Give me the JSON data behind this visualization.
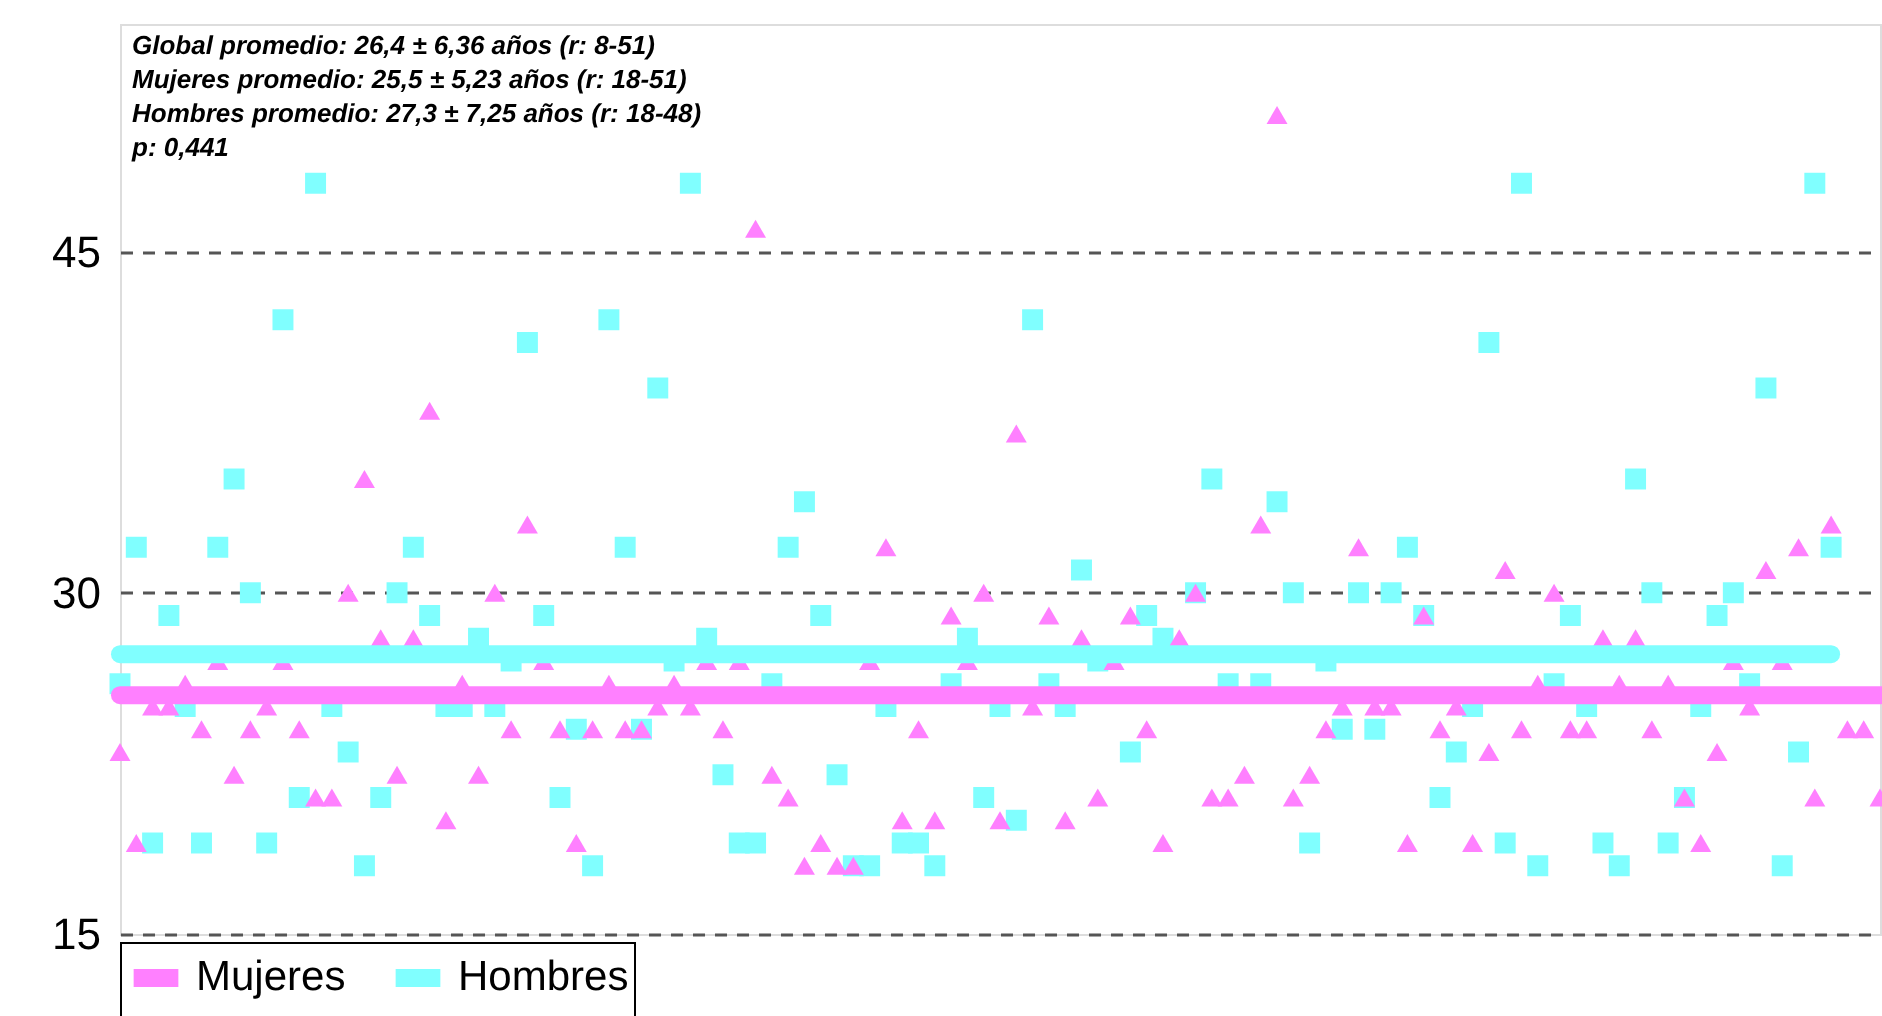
{
  "chart_data": {
    "type": "scatter",
    "annotations": [
      "Global promedio: 26,4 ± 6,36 años (r: 8-51)",
      "Mujeres promedio: 25,5 ± 5,23 años (r: 18-51)",
      "Hombres promedio: 27,3 ± 7,25 años (r: 18-48)",
      "p: 0,441"
    ],
    "categories": [
      null,
      null,
      null,
      null,
      null,
      null,
      null,
      null,
      null,
      null,
      null,
      null,
      null,
      null,
      null,
      null,
      null,
      null,
      null,
      null,
      null,
      null,
      null,
      null,
      null,
      null,
      null,
      null,
      null,
      null,
      null,
      null,
      null,
      null,
      null,
      null,
      null,
      null,
      null,
      null,
      null,
      null,
      null,
      null,
      null,
      null,
      null,
      null,
      null,
      null,
      null,
      null,
      null,
      null,
      null,
      null,
      null,
      null,
      null,
      null,
      null,
      null,
      null,
      null,
      null,
      null,
      null,
      null,
      null,
      null,
      null,
      null,
      null,
      null,
      null,
      null,
      null,
      null,
      null,
      null,
      null,
      null,
      null,
      null,
      null,
      null,
      null,
      null,
      null,
      null,
      null,
      null,
      null,
      null,
      null,
      null,
      null,
      null,
      null,
      null,
      null,
      null,
      null,
      null,
      null,
      null,
      null,
      null,
      null
    ],
    "ylim": [
      15,
      55
    ],
    "yticks": [
      15,
      30,
      45
    ],
    "tick_labels": "y",
    "grid": "y",
    "legend": "bottom",
    "series": [
      {
        "marker": "square",
        "color": "#80ffff",
        "values": [
          26,
          32,
          19,
          29,
          25,
          19,
          32,
          35,
          30,
          19,
          42,
          21,
          48,
          25,
          23,
          18,
          21,
          30,
          32,
          29,
          25,
          25,
          28,
          25,
          27,
          41,
          29,
          21,
          24,
          18,
          42,
          32,
          24,
          39,
          27,
          48,
          28,
          22,
          19,
          19,
          26,
          32,
          34,
          29,
          22,
          18,
          18,
          25,
          19,
          19,
          18,
          26,
          28,
          21,
          25,
          20,
          42,
          26,
          25,
          31,
          27,
          null,
          23,
          29,
          28,
          null,
          30,
          35,
          26,
          null,
          26,
          34,
          30,
          19,
          27,
          24,
          30,
          24,
          30,
          32,
          29,
          21,
          23,
          25,
          41,
          19,
          48,
          18,
          26,
          29,
          25,
          19,
          18,
          35,
          30,
          19,
          21,
          25,
          29,
          30,
          26,
          39,
          18,
          23,
          48,
          32,
          null,
          null,
          null
        ]
      },
      {
        "marker": "triangle",
        "color": "#ff80ff",
        "values": [
          23,
          19,
          25,
          25,
          26,
          24,
          27,
          22,
          24,
          25,
          27,
          24,
          21,
          21,
          30,
          35,
          28,
          22,
          28,
          38,
          20,
          26,
          22,
          30,
          24,
          33,
          27,
          24,
          19,
          24,
          26,
          24,
          24,
          25,
          26,
          25,
          27,
          24,
          27,
          46,
          22,
          21,
          18,
          19,
          18,
          18,
          27,
          32,
          20,
          24,
          20,
          29,
          27,
          30,
          20,
          37,
          25,
          29,
          20,
          28,
          21,
          27,
          29,
          24,
          19,
          28,
          30,
          21,
          21,
          22,
          33,
          51,
          21,
          22,
          24,
          25,
          32,
          25,
          25,
          19,
          29,
          24,
          25,
          19,
          23,
          31,
          24,
          26,
          30,
          24,
          24,
          28,
          26,
          28,
          24,
          26,
          21,
          19,
          23,
          27,
          25,
          31,
          27,
          32,
          21,
          33,
          24,
          24,
          21
        ]
      },
      {
        "type": "line",
        "name": "Mujeres",
        "color": "#ff80ff",
        "values": [
          25.5,
          25.5,
          25.5,
          25.5,
          25.5,
          25.5,
          25.5,
          25.5,
          25.5,
          25.5,
          25.5,
          25.5,
          25.5,
          25.5,
          25.5,
          25.5,
          25.5,
          25.5,
          25.5,
          25.5,
          25.5,
          25.5,
          25.5,
          25.5,
          25.5,
          25.5,
          25.5,
          25.5,
          25.5,
          25.5,
          25.5,
          25.5,
          25.5,
          25.5,
          25.5,
          25.5,
          25.5,
          25.5,
          25.5,
          25.5,
          25.5,
          25.5,
          25.5,
          25.5,
          25.5,
          25.5,
          25.5,
          25.5,
          25.5,
          25.5,
          25.5,
          25.5,
          25.5,
          25.5,
          25.5,
          25.5,
          25.5,
          25.5,
          25.5,
          25.5,
          25.5,
          25.5,
          25.5,
          25.5,
          25.5,
          25.5,
          25.5,
          25.5,
          25.5,
          25.5,
          25.5,
          25.5,
          25.5,
          25.5,
          25.5,
          25.5,
          25.5,
          25.5,
          25.5,
          25.5,
          25.5,
          25.5,
          25.5,
          25.5,
          25.5,
          25.5,
          25.5,
          25.5,
          25.5,
          25.5,
          25.5,
          25.5,
          25.5,
          25.5,
          25.5,
          25.5,
          25.5,
          25.5,
          25.5,
          25.5,
          25.5,
          25.5,
          25.5,
          25.5,
          25.5,
          25.5,
          25.5,
          25.5,
          25.5
        ]
      },
      {
        "type": "line",
        "name": "Hombres",
        "color": "#80ffff",
        "values": [
          27.3,
          27.3,
          27.3,
          27.3,
          27.3,
          27.3,
          27.3,
          27.3,
          27.3,
          27.3,
          27.3,
          27.3,
          27.3,
          27.3,
          27.3,
          27.3,
          27.3,
          27.3,
          27.3,
          27.3,
          27.3,
          27.3,
          27.3,
          27.3,
          27.3,
          27.3,
          27.3,
          27.3,
          27.3,
          27.3,
          27.3,
          27.3,
          27.3,
          27.3,
          27.3,
          27.3,
          27.3,
          27.3,
          27.3,
          27.3,
          27.3,
          27.3,
          27.3,
          27.3,
          27.3,
          27.3,
          27.3,
          27.3,
          27.3,
          27.3,
          27.3,
          27.3,
          27.3,
          27.3,
          27.3,
          27.3,
          27.3,
          27.3,
          27.3,
          27.3,
          27.3,
          27.3,
          27.3,
          27.3,
          27.3,
          27.3,
          27.3,
          27.3,
          27.3,
          27.3,
          27.3,
          27.3,
          27.3,
          27.3,
          27.3,
          27.3,
          27.3,
          27.3,
          27.3,
          27.3,
          27.3,
          27.3,
          27.3,
          27.3,
          27.3,
          27.3,
          27.3,
          27.3,
          27.3,
          27.3,
          27.3,
          27.3,
          27.3,
          27.3,
          27.3,
          27.3,
          27.3,
          27.3,
          27.3,
          27.3,
          27.3,
          27.3,
          27.3,
          27.3,
          27.3,
          27.3,
          null,
          null,
          null
        ]
      }
    ]
  }
}
